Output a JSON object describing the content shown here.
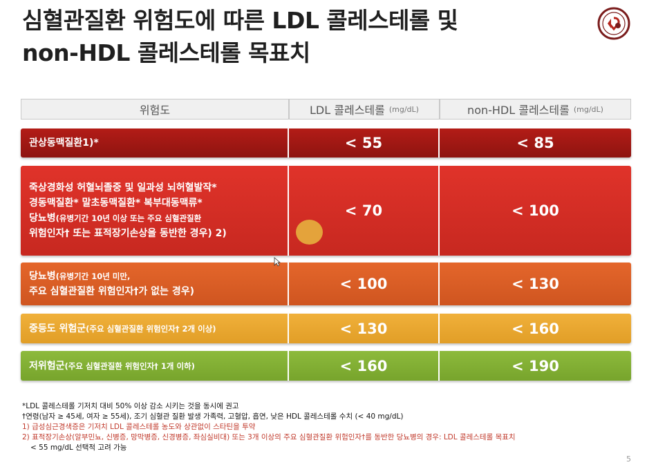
{
  "title": {
    "line1": "심혈관질환 위험도에 따른 LDL 콜레스테롤 및",
    "line2": "non-HDL 콜레스테롤 목표치"
  },
  "header": {
    "risk": "위험도",
    "ldl": "LDL 콜레스테롤",
    "ldl_unit": "(mg/dL)",
    "nonhdl": "non-HDL 콜레스테롤",
    "nonhdl_unit": "(mg/dL)"
  },
  "rows": [
    {
      "lines": [
        "관상동맥질환1)*"
      ],
      "ldl": "< 55",
      "nonhdl": "< 85"
    },
    {
      "lines": [
        "죽상경화성 허혈뇌졸중 및 일과성 뇌허혈발작*",
        "경동맥질환*  말초동맥질환*  복부대동맥류*"
      ],
      "extra1_bold": "당뇨병",
      "extra1_rest": "(유병기간 10년 이상 또는 주요 심혈관질환",
      "extra2": "위험인자† 또는 표적장기손상을 동반한 경우) 2)",
      "ldl": "< 70",
      "nonhdl": "< 100"
    },
    {
      "bold": "당뇨병",
      "rest": "(유병기간 10년 미만,",
      "line2": "주요 심혈관질환 위험인자†가 없는 경우)",
      "ldl": "< 100",
      "nonhdl": "< 130"
    },
    {
      "bold": "중등도 위험군",
      "rest": "(주요 심혈관질환 위험인자† 2개 이상)",
      "ldl": "< 130",
      "nonhdl": "< 160"
    },
    {
      "bold": "저위험군",
      "rest": "(주요 심혈관질환 위험인자† 1개 이하)",
      "ldl": "< 160",
      "nonhdl": "< 190"
    }
  ],
  "notes": [
    "*LDL 콜레스테롤 기저치 대비 50% 이상 감소 시키는 것을 동시에 권고",
    "†연령(남자 ≥ 45세, 여자 ≥ 55세), 조기 심혈관 질환 발생 가족력, 고혈압, 흡연, 낮은 HDL 콜레스테롤 수치 (< 40 mg/dL)",
    "1) 급성심근경색증은 기저치 LDL 콜레스테롤 농도와 상관없이 스타틴을 투약",
    "2) 표적장기손상(알부민뇨, 신병증, 망막병증, 신경병증, 좌심실비대) 또는 3개 이상의 주요 심혈관질환 위험인자†를 동반한 당뇨병의 경우: LDL 콜레스테롤 목표치",
    "< 55 mg/dL 선택적 고려 가능"
  ],
  "page_number": "5",
  "colors": {
    "row1": "#a0180f",
    "row2": "#d42b22",
    "row3": "#d95d25",
    "row4": "#e9a830",
    "row5": "#82b034"
  }
}
